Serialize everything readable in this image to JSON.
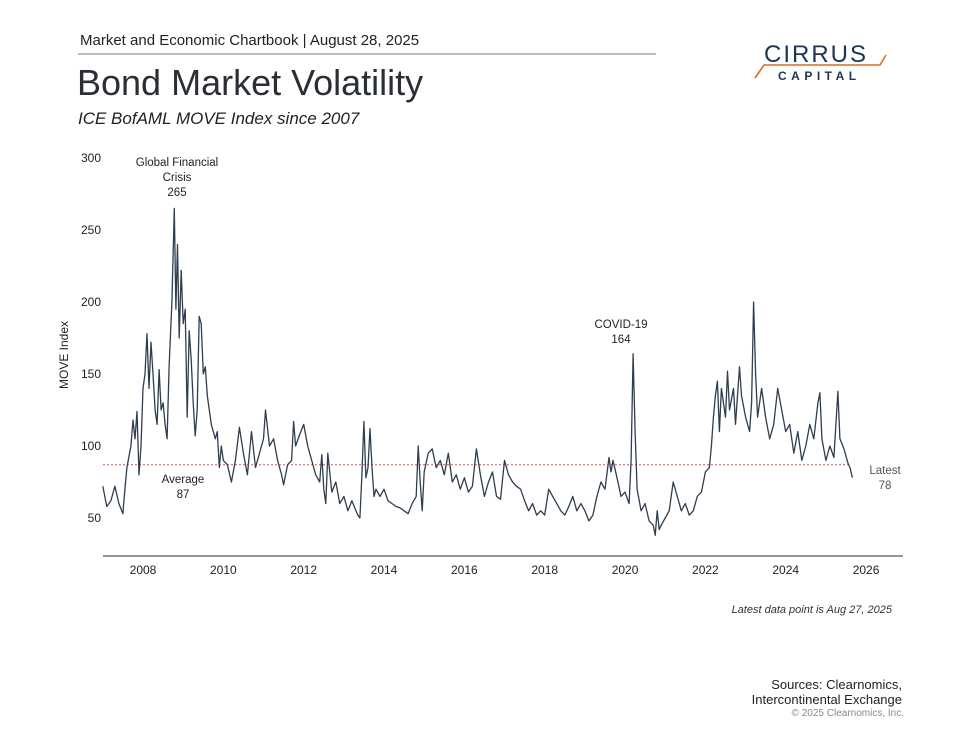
{
  "header": {
    "chartbook": "Market and Economic Chartbook | August 28, 2025",
    "title": "Bond Market Volatility",
    "subtitle": "ICE BofAML MOVE Index since 2007"
  },
  "logo": {
    "line1": "CIRRUS",
    "line2": "CAPITAL",
    "navy": "#1d3553",
    "orange": "#e06a1e"
  },
  "footer": {
    "note": "Latest data point is Aug 27, 2025",
    "sources": "Sources: Clearnomics,",
    "sources2": "Intercontinental Exchange",
    "copyright": "© 2025 Clearnomics, Inc."
  },
  "chart_data": {
    "type": "line",
    "ylabel": "MOVE Index",
    "xlim": [
      2007.0,
      2026.9
    ],
    "ylim": [
      25,
      300
    ],
    "yticks": [
      50,
      100,
      150,
      200,
      250,
      300
    ],
    "xticks": [
      2008,
      2010,
      2012,
      2014,
      2016,
      2018,
      2020,
      2022,
      2024,
      2026
    ],
    "grid": false,
    "line_color": "#2e3e4e",
    "average": {
      "value": 87,
      "label": "Average",
      "value_label": "87",
      "color": "#d9534f"
    },
    "annotations": [
      {
        "text": [
          "Global Financial",
          "Crisis",
          "265"
        ],
        "x": 2008.78,
        "y": 265
      },
      {
        "text": [
          "COVID-19",
          "164"
        ],
        "x": 2020.2,
        "y": 164
      },
      {
        "text": [
          "Latest",
          "78"
        ],
        "x": 2025.66,
        "y": 78
      }
    ],
    "series": [
      {
        "x": [
          2007.0,
          2007.1,
          2007.2,
          2007.3,
          2007.4,
          2007.5,
          2007.55,
          2007.6,
          2007.7,
          2007.75,
          2007.8,
          2007.85,
          2007.9,
          2007.95,
          2008.0,
          2008.05,
          2008.1,
          2008.15,
          2008.2,
          2008.25,
          2008.3,
          2008.35,
          2008.4,
          2008.45,
          2008.5,
          2008.55,
          2008.6,
          2008.65,
          2008.72,
          2008.78,
          2008.82,
          2008.86,
          2008.9,
          2008.95,
          2009.0,
          2009.05,
          2009.1,
          2009.15,
          2009.2,
          2009.25,
          2009.3,
          2009.35,
          2009.4,
          2009.45,
          2009.5,
          2009.55,
          2009.6,
          2009.7,
          2009.8,
          2009.85,
          2009.9,
          2009.95,
          2010.0,
          2010.1,
          2010.2,
          2010.3,
          2010.4,
          2010.5,
          2010.6,
          2010.7,
          2010.8,
          2010.9,
          2011.0,
          2011.05,
          2011.15,
          2011.25,
          2011.35,
          2011.45,
          2011.5,
          2011.6,
          2011.7,
          2011.75,
          2011.8,
          2011.9,
          2012.0,
          2012.1,
          2012.2,
          2012.3,
          2012.4,
          2012.45,
          2012.5,
          2012.55,
          2012.6,
          2012.7,
          2012.8,
          2012.9,
          2013.0,
          2013.1,
          2013.2,
          2013.3,
          2013.35,
          2013.4,
          2013.45,
          2013.5,
          2013.55,
          2013.6,
          2013.65,
          2013.7,
          2013.75,
          2013.8,
          2013.9,
          2014.0,
          2014.1,
          2014.2,
          2014.3,
          2014.4,
          2014.5,
          2014.6,
          2014.7,
          2014.8,
          2014.85,
          2014.9,
          2014.95,
          2015.0,
          2015.1,
          2015.2,
          2015.3,
          2015.4,
          2015.5,
          2015.6,
          2015.7,
          2015.8,
          2015.9,
          2016.0,
          2016.1,
          2016.2,
          2016.3,
          2016.4,
          2016.5,
          2016.6,
          2016.7,
          2016.8,
          2016.9,
          2017.0,
          2017.1,
          2017.2,
          2017.3,
          2017.4,
          2017.5,
          2017.6,
          2017.7,
          2017.8,
          2017.9,
          2018.0,
          2018.1,
          2018.2,
          2018.3,
          2018.4,
          2018.5,
          2018.6,
          2018.7,
          2018.8,
          2018.9,
          2019.0,
          2019.1,
          2019.2,
          2019.3,
          2019.4,
          2019.5,
          2019.6,
          2019.65,
          2019.7,
          2019.8,
          2019.9,
          2020.0,
          2020.1,
          2020.15,
          2020.2,
          2020.25,
          2020.3,
          2020.4,
          2020.5,
          2020.6,
          2020.7,
          2020.75,
          2020.8,
          2020.85,
          2020.9,
          2021.0,
          2021.1,
          2021.2,
          2021.3,
          2021.4,
          2021.5,
          2021.6,
          2021.7,
          2021.8,
          2021.9,
          2022.0,
          2022.1,
          2022.15,
          2022.2,
          2022.25,
          2022.3,
          2022.35,
          2022.4,
          2022.5,
          2022.55,
          2022.6,
          2022.7,
          2022.75,
          2022.85,
          2022.9,
          2023.0,
          2023.1,
          2023.15,
          2023.2,
          2023.25,
          2023.3,
          2023.4,
          2023.5,
          2023.6,
          2023.7,
          2023.8,
          2023.9,
          2024.0,
          2024.1,
          2024.2,
          2024.3,
          2024.4,
          2024.5,
          2024.6,
          2024.7,
          2024.8,
          2024.85,
          2024.9,
          2025.0,
          2025.1,
          2025.2,
          2025.3,
          2025.35,
          2025.45,
          2025.55,
          2025.6,
          2025.66
        ],
        "values": [
          72,
          58,
          62,
          72,
          60,
          53,
          70,
          85,
          100,
          118,
          105,
          124,
          80,
          100,
          140,
          150,
          178,
          140,
          172,
          150,
          125,
          115,
          153,
          125,
          130,
          115,
          105,
          155,
          200,
          265,
          195,
          240,
          175,
          222,
          185,
          195,
          120,
          180,
          160,
          130,
          107,
          125,
          190,
          185,
          150,
          155,
          135,
          115,
          105,
          110,
          85,
          100,
          90,
          87,
          75,
          90,
          113,
          95,
          80,
          110,
          85,
          95,
          105,
          125,
          100,
          105,
          90,
          80,
          73,
          87,
          90,
          117,
          100,
          108,
          115,
          100,
          90,
          80,
          75,
          94,
          70,
          60,
          95,
          68,
          75,
          60,
          65,
          55,
          62,
          55,
          52,
          50,
          80,
          117,
          78,
          85,
          112,
          85,
          65,
          70,
          65,
          70,
          62,
          60,
          58,
          57,
          55,
          53,
          60,
          65,
          100,
          75,
          55,
          82,
          95,
          98,
          85,
          90,
          80,
          95,
          75,
          80,
          70,
          78,
          68,
          72,
          98,
          80,
          65,
          75,
          82,
          65,
          63,
          90,
          80,
          75,
          72,
          70,
          62,
          55,
          60,
          52,
          55,
          52,
          70,
          65,
          60,
          55,
          52,
          58,
          65,
          55,
          60,
          55,
          48,
          52,
          65,
          75,
          70,
          92,
          82,
          90,
          78,
          65,
          68,
          60,
          90,
          164,
          110,
          70,
          55,
          60,
          48,
          45,
          38,
          55,
          42,
          45,
          50,
          55,
          75,
          65,
          55,
          60,
          52,
          55,
          65,
          68,
          82,
          85,
          100,
          120,
          135,
          145,
          110,
          140,
          120,
          152,
          125,
          140,
          115,
          155,
          135,
          120,
          110,
          130,
          200,
          150,
          120,
          140,
          120,
          105,
          115,
          140,
          125,
          110,
          115,
          95,
          110,
          90,
          100,
          115,
          105,
          130,
          137,
          105,
          90,
          100,
          92,
          138,
          105,
          98,
          88,
          85,
          78
        ]
      }
    ]
  }
}
